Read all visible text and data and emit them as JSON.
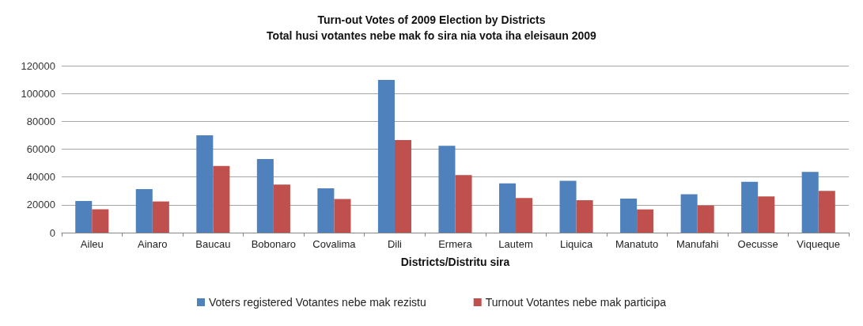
{
  "chart_data": {
    "type": "bar",
    "title": "Turn-out Votes of 2009 Election by Districts\nTotal husi votantes nebe mak fo sira nia vota iha eleisaun 2009",
    "xlabel": "Districts/Distritu sira",
    "categories": [
      "Aileu",
      "Ainaro",
      "Baucau",
      "Bobonaro",
      "Covalima",
      "Dili",
      "Ermera",
      "Lautem",
      "Liquica",
      "Manatuto",
      "Manufahi",
      "Oecusse",
      "Viqueque"
    ],
    "series": [
      {
        "name": "Voters registered Votantes nebe mak rezistu",
        "color": "#4f81bd",
        "values": [
          22800,
          31300,
          69900,
          52900,
          31900,
          109700,
          62400,
          35400,
          37200,
          24500,
          27600,
          36600,
          43700
        ]
      },
      {
        "name": "Turnout Votantes nebe mak participa",
        "color": "#c0504d",
        "values": [
          16800,
          22400,
          47900,
          34500,
          24200,
          66500,
          41400,
          24900,
          23300,
          16700,
          19500,
          26000,
          30000
        ]
      }
    ],
    "ylim": [
      0,
      120000
    ],
    "yticks": [
      0,
      20000,
      40000,
      60000,
      80000,
      100000,
      120000
    ],
    "grid": "y",
    "legend": "bottom"
  }
}
